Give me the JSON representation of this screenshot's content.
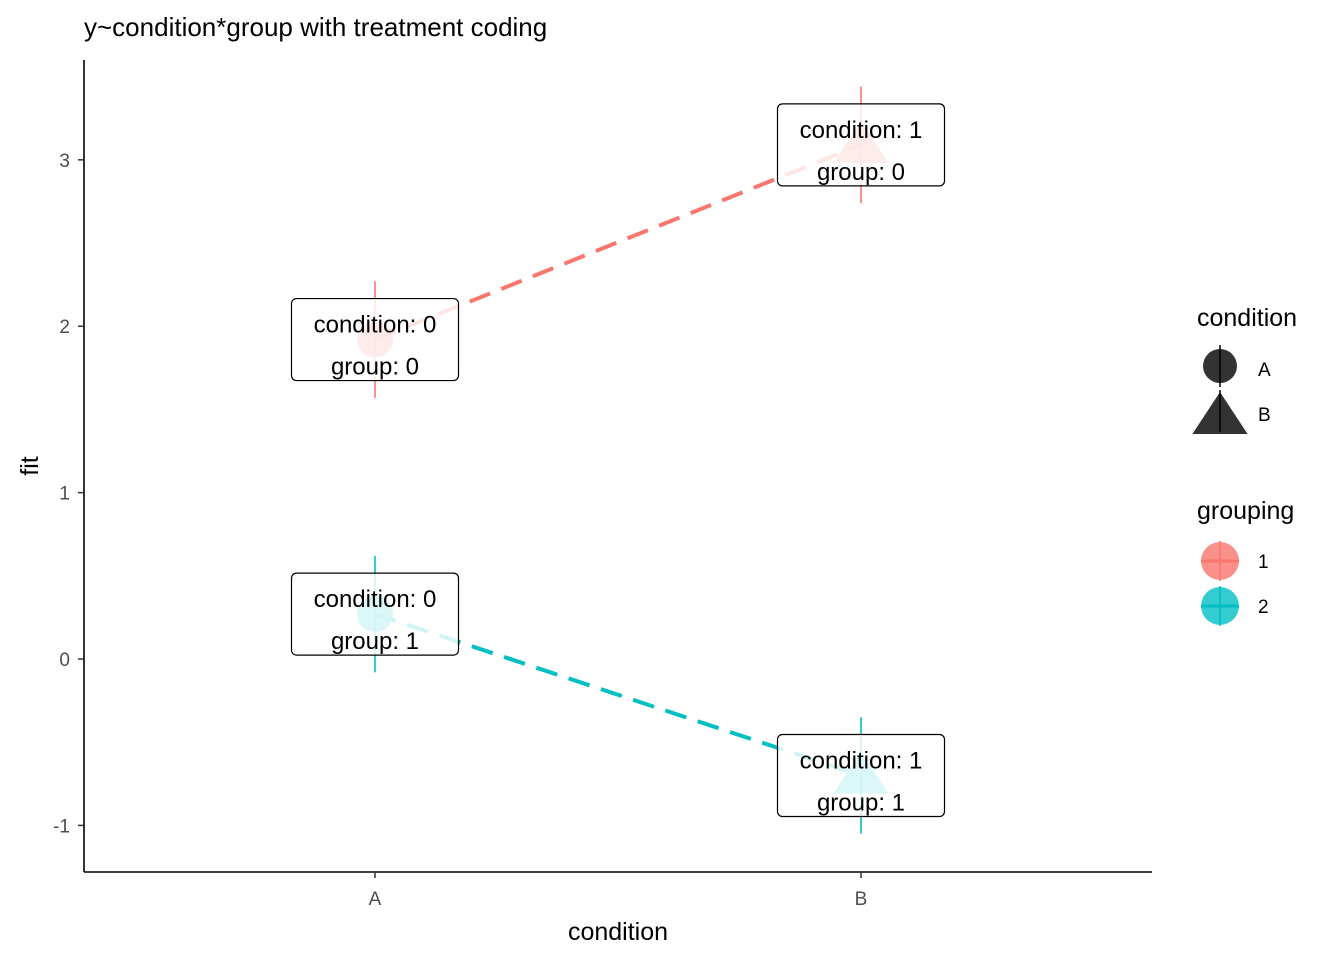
{
  "chart_data": {
    "type": "line",
    "title": "y~condition*group with treatment coding",
    "xlabel": "condition",
    "ylabel": "fit",
    "categories": [
      "A",
      "B"
    ],
    "ylim": [
      -1.28,
      3.6
    ],
    "yticks": [
      -1,
      0,
      1,
      2,
      3
    ],
    "grid": false,
    "series": [
      {
        "name": "1",
        "color": "#F8766D",
        "values": [
          1.92,
          3.09
        ],
        "ci_low": [
          1.57,
          2.74
        ],
        "ci_high": [
          2.27,
          3.44
        ],
        "labels": [
          [
            "condition: 0",
            "group: 0"
          ],
          [
            "condition: 1",
            "group: 0"
          ]
        ]
      },
      {
        "name": "2",
        "color": "#00BFC4",
        "values": [
          0.27,
          -0.7
        ],
        "ci_low": [
          -0.08,
          -1.05
        ],
        "ci_high": [
          0.62,
          -0.35
        ],
        "labels": [
          [
            "condition: 0",
            "group: 1"
          ],
          [
            "condition: 1",
            "group: 1"
          ]
        ]
      }
    ],
    "legend": {
      "position": "right",
      "shape_title": "condition",
      "shape_items": [
        {
          "label": "A",
          "shape": "circle"
        },
        {
          "label": "B",
          "shape": "triangle"
        }
      ],
      "color_title": "grouping",
      "color_items": [
        {
          "label": "1",
          "color": "#F8766D"
        },
        {
          "label": "2",
          "color": "#00BFC4"
        }
      ]
    }
  }
}
